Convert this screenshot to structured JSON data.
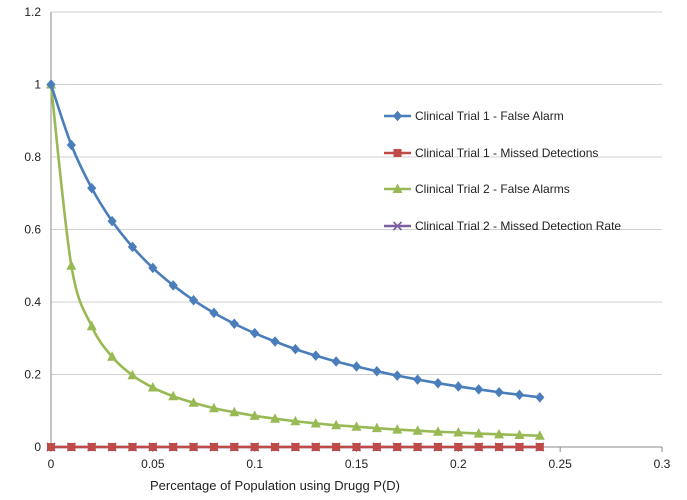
{
  "chart_data": {
    "type": "line",
    "title": "",
    "xlabel": "Percentage of Population using Drugg P(D)",
    "ylabel": "",
    "xlim": [
      0,
      0.3
    ],
    "ylim": [
      0,
      1.2
    ],
    "xticks": [
      "0",
      "0.05",
      "0.1",
      "0.15",
      "0.2",
      "0.25",
      "0.3"
    ],
    "yticks": [
      "0",
      "0.2",
      "0.4",
      "0.6",
      "0.8",
      "1",
      "1.2"
    ],
    "grid": "horizontal",
    "legend_position": "right",
    "x": [
      0,
      0.01,
      0.02,
      0.03,
      0.04,
      0.05,
      0.06,
      0.07,
      0.08,
      0.09,
      0.1,
      0.11,
      0.12,
      0.13,
      0.14,
      0.15,
      0.16,
      0.17,
      0.18,
      0.19,
      0.2,
      0.21,
      0.22,
      0.23,
      0.24
    ],
    "series": [
      {
        "name": "Clinical Trial 1 - False Alarm",
        "color": "#4a7ebb",
        "marker": "diamond",
        "values": [
          1.0,
          0.833,
          0.714,
          0.623,
          0.552,
          0.494,
          0.446,
          0.405,
          0.37,
          0.34,
          0.314,
          0.291,
          0.27,
          0.252,
          0.236,
          0.222,
          0.209,
          0.197,
          0.186,
          0.176,
          0.167,
          0.159,
          0.151,
          0.144,
          0.137
        ]
      },
      {
        "name": "Clinical Trial 1 - Missed Detections",
        "color": "#be4b48",
        "marker": "square",
        "values": [
          0,
          0,
          0,
          0,
          0,
          0,
          0,
          0,
          0,
          0,
          0,
          0,
          0,
          0,
          0,
          0,
          0,
          0,
          0,
          0,
          0,
          0,
          0,
          0,
          0
        ]
      },
      {
        "name": "Clinical Trial 2 - False Alarms",
        "color": "#98b954",
        "marker": "triangle",
        "values": [
          1.0,
          0.5,
          0.333,
          0.249,
          0.198,
          0.164,
          0.14,
          0.122,
          0.107,
          0.096,
          0.086,
          0.078,
          0.071,
          0.065,
          0.06,
          0.056,
          0.052,
          0.048,
          0.045,
          0.042,
          0.04,
          0.037,
          0.035,
          0.033,
          0.031
        ]
      },
      {
        "name": "Clinical Trial 2 - Missed Detection Rate",
        "color": "#7d60a0",
        "marker": "x",
        "values": [
          0,
          0,
          0,
          0,
          0,
          0,
          0,
          0,
          0,
          0,
          0,
          0,
          0,
          0,
          0,
          0,
          0,
          0,
          0,
          0,
          0,
          0,
          0,
          0,
          0
        ]
      }
    ]
  }
}
